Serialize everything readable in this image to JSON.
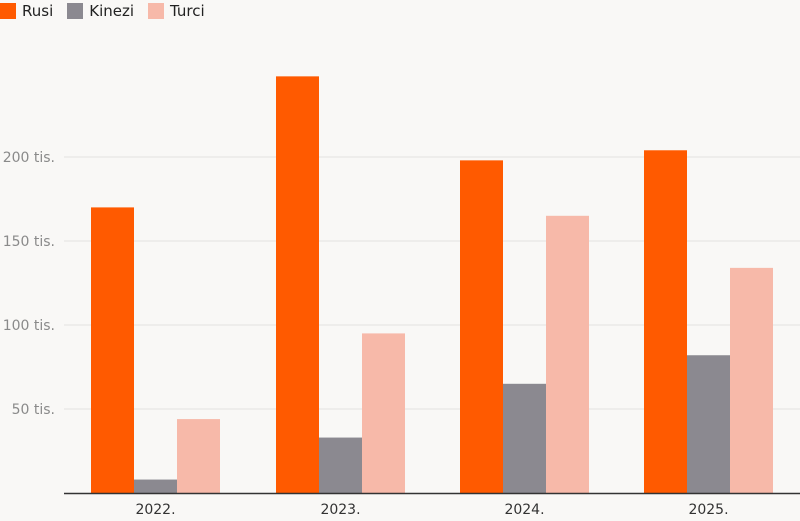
{
  "colors": {
    "rusi": "#ff5a00",
    "kinezi": "#8b8990",
    "turci": "#f7b9a9",
    "grid": "#e3e2e0",
    "axis": "#333333"
  },
  "chart_data": {
    "type": "bar",
    "categories": [
      "2022.",
      "2023.",
      "2024.",
      "2025."
    ],
    "series": [
      {
        "name": "Rusi",
        "values": [
          170000,
          248000,
          198000,
          204000
        ]
      },
      {
        "name": "Kinezi",
        "values": [
          8000,
          33000,
          65000,
          82000
        ]
      },
      {
        "name": "Turci",
        "values": [
          44000,
          95000,
          165000,
          134000
        ]
      }
    ],
    "yticks": [
      50000,
      100000,
      150000,
      200000
    ],
    "ytick_labels": [
      "50 tis.",
      "100 tis.",
      "150 tis.",
      "200 tis."
    ],
    "ylim": [
      0,
      250000
    ],
    "grid": true,
    "legend_position": "top-left"
  }
}
